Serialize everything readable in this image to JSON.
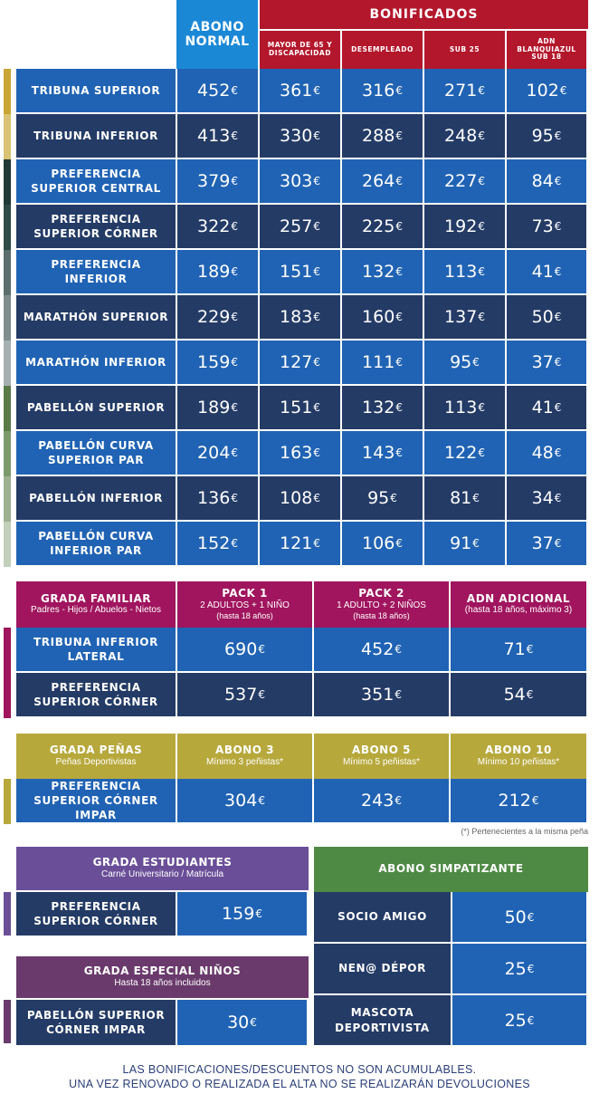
{
  "main": {
    "col_abono": "ABONO NORMAL",
    "col_bonificados": "BONIFICADOS",
    "subcols": [
      "MAYOR DE 65 Y DISCAPACIDAD",
      "DESEMPLEADO",
      "SUB 25",
      "ADN BLANQUIAZUL SUB 18"
    ],
    "rows": [
      {
        "name": "TRIBUNA SUPERIOR",
        "prices": [
          "452",
          "361",
          "316",
          "271",
          "102"
        ],
        "color": "#c9a535"
      },
      {
        "name": "TRIBUNA INFERIOR",
        "prices": [
          "413",
          "330",
          "288",
          "248",
          "95"
        ],
        "color": "#d9c374"
      },
      {
        "name": "PREFERENCIA SUPERIOR CENTRAL",
        "prices": [
          "379",
          "303",
          "264",
          "227",
          "84"
        ],
        "color": "#223a36"
      },
      {
        "name": "PREFERENCIA SUPERIOR CÓRNER",
        "prices": [
          "322",
          "257",
          "225",
          "192",
          "73"
        ],
        "color": "#2f4b45"
      },
      {
        "name": "PREFERENCIA INFERIOR",
        "prices": [
          "189",
          "151",
          "132",
          "113",
          "41"
        ],
        "color": "#5c6e6e"
      },
      {
        "name": "MARATHÓN SUPERIOR",
        "prices": [
          "229",
          "183",
          "160",
          "137",
          "50"
        ],
        "color": "#808d8f"
      },
      {
        "name": "MARATHÓN INFERIOR",
        "prices": [
          "159",
          "127",
          "111",
          "95",
          "37"
        ],
        "color": "#a6b0b2"
      },
      {
        "name": "PABELLÓN SUPERIOR",
        "prices": [
          "189",
          "151",
          "132",
          "113",
          "41"
        ],
        "color": "#5a7a48"
      },
      {
        "name": "PABELLÓN CURVA SUPERIOR PAR",
        "prices": [
          "204",
          "163",
          "143",
          "122",
          "48"
        ],
        "color": "#7c9b6c"
      },
      {
        "name": "PABELLÓN INFERIOR",
        "prices": [
          "136",
          "108",
          "95",
          "81",
          "34"
        ],
        "color": "#9db191"
      },
      {
        "name": "PABELLÓN CURVA INFERIOR PAR",
        "prices": [
          "152",
          "121",
          "106",
          "91",
          "37"
        ],
        "color": "#c2cfbb"
      }
    ]
  },
  "currency": "€",
  "familiar": {
    "title": "GRADA FAMILIAR",
    "subtitle": "Padres - Hijos / Abuelos - Nietos",
    "cols": [
      {
        "title": "PACK 1",
        "line1": "2 ADULTOS + 1 NIÑO",
        "line2": "(hasta 18 años)"
      },
      {
        "title": "PACK 2",
        "line1": "1 ADULTO + 2 NIÑOS",
        "line2": "(hasta 18 años)"
      },
      {
        "title": "ADN ADICIONAL",
        "line1": "(hasta 18 años, máximo 3)",
        "line2": ""
      }
    ],
    "rows": [
      {
        "name": "TRIBUNA INFERIOR LATERAL",
        "prices": [
          "690",
          "452",
          "71"
        ]
      },
      {
        "name": "PREFERENCIA SUPERIOR CÓRNER",
        "prices": [
          "537",
          "351",
          "54"
        ]
      }
    ],
    "color": "#a0155e"
  },
  "penas": {
    "title": "GRADA PEÑAS",
    "subtitle": "Peñas Deportivistas",
    "cols": [
      {
        "title": "ABONO 3",
        "line1": "Mínimo 3 peñistas*"
      },
      {
        "title": "ABONO 5",
        "line1": "Mínimo 5 peñistas*"
      },
      {
        "title": "ABONO 10",
        "line1": "Mínimo 10 peñistas*"
      }
    ],
    "rows": [
      {
        "name": "PREFERENCIA SUPERIOR CÓRNER IMPAR",
        "prices": [
          "304",
          "243",
          "212"
        ]
      }
    ],
    "note": "(*) Pertenecientes a la misma peña",
    "color": "#b7a83c"
  },
  "estudiantes": {
    "title": "GRADA ESTUDIANTES",
    "subtitle": "Carné Universitario / Matrícula",
    "row_name": "PREFERENCIA SUPERIOR CÓRNER",
    "price": "159",
    "color": "#6a4f98"
  },
  "ninos": {
    "title": "GRADA ESPECIAL NIÑOS",
    "subtitle": "Hasta 18 años incluidos",
    "row_name": "PABELLÓN SUPERIOR CÓRNER IMPAR",
    "price": "30",
    "color": "#6a3a6c"
  },
  "simpatizante": {
    "title": "ABONO SIMPATIZANTE",
    "rows": [
      {
        "name": "SOCIO AMIGO",
        "price": "50"
      },
      {
        "name": "NEN@ DÉPOR",
        "price": "25"
      },
      {
        "name": "MASCOTA DEPORTIVISTA",
        "price": "25"
      }
    ],
    "color": "#4f8a45"
  },
  "footer": {
    "line1": "LAS BONIFICACIONES/DESCUENTOS NO SON ACUMULABLES.",
    "line2": "UNA VEZ RENOVADO O REALIZADA EL ALTA NO SE REALIZARÁN DEVOLUCIONES"
  },
  "colors": {
    "light_blue": "#2063b4",
    "dark_blue": "#243b66",
    "abono_header": "#1b88d6",
    "bonificados": "#b3172c"
  }
}
